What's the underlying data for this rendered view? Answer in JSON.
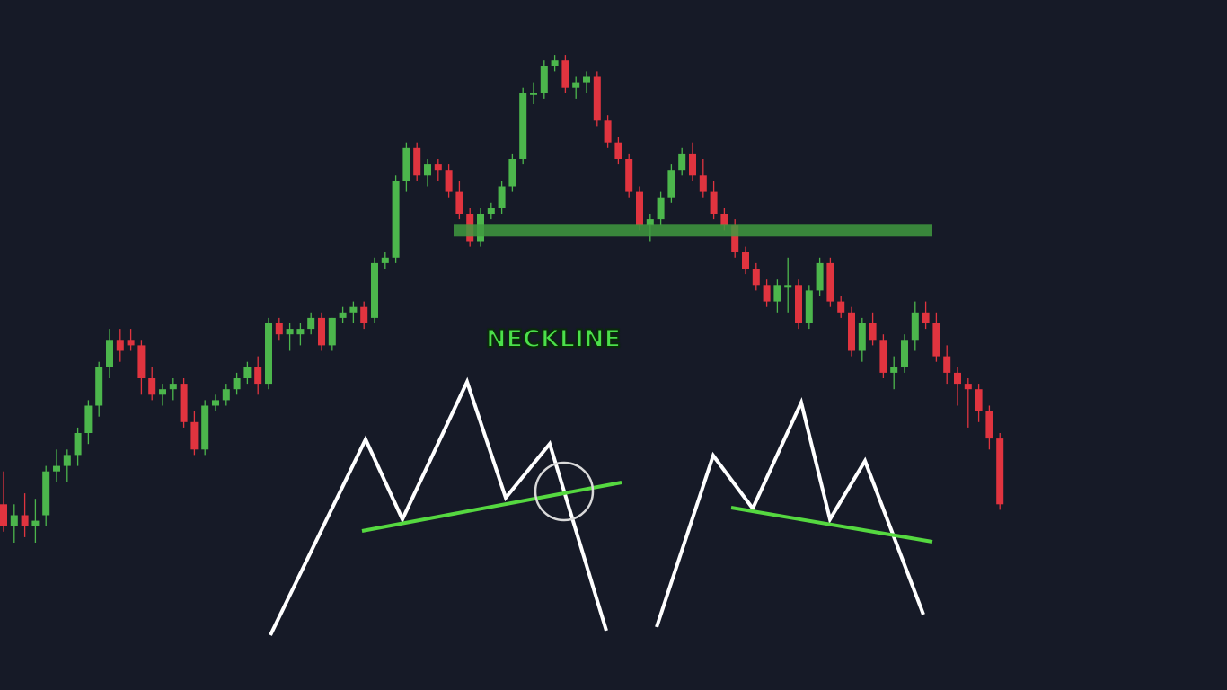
{
  "chart_data": {
    "type": "candlestick",
    "title": "",
    "xlabel": "",
    "ylabel": "",
    "grid": false,
    "colors": {
      "background": "#161a27",
      "up": "#4cb64c",
      "down": "#e0343f",
      "neckline": "#3f9a3f",
      "diagram_line": "#ffffff",
      "diagram_trend": "#55d840"
    },
    "ylim": [
      0,
      100
    ],
    "candles": [
      {
        "o": 17,
        "h": 23,
        "l": 12,
        "c": 13
      },
      {
        "o": 13,
        "h": 17,
        "l": 10,
        "c": 15
      },
      {
        "o": 15,
        "h": 19,
        "l": 11,
        "c": 13
      },
      {
        "o": 13,
        "h": 18,
        "l": 10,
        "c": 14
      },
      {
        "o": 15,
        "h": 24,
        "l": 13,
        "c": 23
      },
      {
        "o": 23,
        "h": 27,
        "l": 21,
        "c": 24
      },
      {
        "o": 24,
        "h": 27,
        "l": 21,
        "c": 26
      },
      {
        "o": 26,
        "h": 31,
        "l": 24,
        "c": 30
      },
      {
        "o": 30,
        "h": 36,
        "l": 28,
        "c": 35
      },
      {
        "o": 35,
        "h": 43,
        "l": 33,
        "c": 42
      },
      {
        "o": 42,
        "h": 49,
        "l": 40,
        "c": 47
      },
      {
        "o": 47,
        "h": 49,
        "l": 43,
        "c": 45
      },
      {
        "o": 47,
        "h": 49,
        "l": 45,
        "c": 46
      },
      {
        "o": 46,
        "h": 47,
        "l": 37,
        "c": 40
      },
      {
        "o": 40,
        "h": 42,
        "l": 36,
        "c": 37
      },
      {
        "o": 37,
        "h": 39,
        "l": 35,
        "c": 38
      },
      {
        "o": 38,
        "h": 40,
        "l": 36,
        "c": 39
      },
      {
        "o": 39,
        "h": 40,
        "l": 31,
        "c": 32
      },
      {
        "o": 32,
        "h": 34,
        "l": 26,
        "c": 27
      },
      {
        "o": 27,
        "h": 36,
        "l": 26,
        "c": 35
      },
      {
        "o": 35,
        "h": 37,
        "l": 34,
        "c": 36
      },
      {
        "o": 36,
        "h": 39,
        "l": 35,
        "c": 38
      },
      {
        "o": 38,
        "h": 41,
        "l": 37,
        "c": 40
      },
      {
        "o": 40,
        "h": 43,
        "l": 39,
        "c": 42
      },
      {
        "o": 42,
        "h": 44,
        "l": 37,
        "c": 39
      },
      {
        "o": 39,
        "h": 51,
        "l": 38,
        "c": 50
      },
      {
        "o": 50,
        "h": 51,
        "l": 47,
        "c": 48
      },
      {
        "o": 48,
        "h": 50,
        "l": 45,
        "c": 49
      },
      {
        "o": 48,
        "h": 50,
        "l": 46,
        "c": 49
      },
      {
        "o": 49,
        "h": 52,
        "l": 48,
        "c": 51
      },
      {
        "o": 51,
        "h": 52,
        "l": 45,
        "c": 46
      },
      {
        "o": 46,
        "h": 51,
        "l": 45,
        "c": 51
      },
      {
        "o": 51,
        "h": 53,
        "l": 50,
        "c": 52
      },
      {
        "o": 52,
        "h": 54,
        "l": 50,
        "c": 53
      },
      {
        "o": 53,
        "h": 54,
        "l": 49,
        "c": 50
      },
      {
        "o": 51,
        "h": 62,
        "l": 50,
        "c": 61
      },
      {
        "o": 61,
        "h": 63,
        "l": 60,
        "c": 62
      },
      {
        "o": 62,
        "h": 77,
        "l": 61,
        "c": 76
      },
      {
        "o": 76,
        "h": 83,
        "l": 74,
        "c": 82
      },
      {
        "o": 82,
        "h": 83,
        "l": 76,
        "c": 77
      },
      {
        "o": 77,
        "h": 80,
        "l": 75,
        "c": 79
      },
      {
        "o": 79,
        "h": 80,
        "l": 76,
        "c": 78
      },
      {
        "o": 78,
        "h": 79,
        "l": 73,
        "c": 74
      },
      {
        "o": 74,
        "h": 76,
        "l": 69,
        "c": 70
      },
      {
        "o": 70,
        "h": 71,
        "l": 64,
        "c": 65
      },
      {
        "o": 65,
        "h": 71,
        "l": 64,
        "c": 70
      },
      {
        "o": 70,
        "h": 72,
        "l": 69,
        "c": 71
      },
      {
        "o": 71,
        "h": 76,
        "l": 70,
        "c": 75
      },
      {
        "o": 75,
        "h": 81,
        "l": 74,
        "c": 80
      },
      {
        "o": 80,
        "h": 93,
        "l": 79,
        "c": 92
      },
      {
        "o": 92,
        "h": 94,
        "l": 90,
        "c": 92
      },
      {
        "o": 92,
        "h": 98,
        "l": 91,
        "c": 97
      },
      {
        "o": 97,
        "h": 99,
        "l": 96,
        "c": 98
      },
      {
        "o": 98,
        "h": 99,
        "l": 92,
        "c": 93
      },
      {
        "o": 93,
        "h": 95,
        "l": 91,
        "c": 94
      },
      {
        "o": 94,
        "h": 96,
        "l": 92,
        "c": 95
      },
      {
        "o": 95,
        "h": 96,
        "l": 86,
        "c": 87
      },
      {
        "o": 87,
        "h": 88,
        "l": 82,
        "c": 83
      },
      {
        "o": 83,
        "h": 84,
        "l": 79,
        "c": 80
      },
      {
        "o": 80,
        "h": 81,
        "l": 73,
        "c": 74
      },
      {
        "o": 74,
        "h": 75,
        "l": 67,
        "c": 68
      },
      {
        "o": 68,
        "h": 70,
        "l": 65,
        "c": 69
      },
      {
        "o": 69,
        "h": 74,
        "l": 68,
        "c": 73
      },
      {
        "o": 73,
        "h": 79,
        "l": 72,
        "c": 78
      },
      {
        "o": 78,
        "h": 82,
        "l": 77,
        "c": 81
      },
      {
        "o": 81,
        "h": 83,
        "l": 76,
        "c": 77
      },
      {
        "o": 77,
        "h": 80,
        "l": 73,
        "c": 74
      },
      {
        "o": 74,
        "h": 76,
        "l": 69,
        "c": 70
      },
      {
        "o": 70,
        "h": 71,
        "l": 67,
        "c": 68
      },
      {
        "o": 68,
        "h": 69,
        "l": 62,
        "c": 63
      },
      {
        "o": 63,
        "h": 64,
        "l": 59,
        "c": 60
      },
      {
        "o": 60,
        "h": 61,
        "l": 56,
        "c": 57
      },
      {
        "o": 57,
        "h": 58,
        "l": 53,
        "c": 54
      },
      {
        "o": 54,
        "h": 58,
        "l": 52,
        "c": 57
      },
      {
        "o": 57,
        "h": 62,
        "l": 52,
        "c": 57
      },
      {
        "o": 57,
        "h": 58,
        "l": 49,
        "c": 50
      },
      {
        "o": 50,
        "h": 57,
        "l": 49,
        "c": 56
      },
      {
        "o": 56,
        "h": 62,
        "l": 55,
        "c": 61
      },
      {
        "o": 61,
        "h": 62,
        "l": 53,
        "c": 54
      },
      {
        "o": 54,
        "h": 55,
        "l": 51,
        "c": 52
      },
      {
        "o": 52,
        "h": 53,
        "l": 44,
        "c": 45
      },
      {
        "o": 45,
        "h": 51,
        "l": 43,
        "c": 50
      },
      {
        "o": 50,
        "h": 52,
        "l": 46,
        "c": 47
      },
      {
        "o": 47,
        "h": 48,
        "l": 40,
        "c": 41
      },
      {
        "o": 41,
        "h": 44,
        "l": 38,
        "c": 42
      },
      {
        "o": 42,
        "h": 48,
        "l": 41,
        "c": 47
      },
      {
        "o": 47,
        "h": 54,
        "l": 45,
        "c": 52
      },
      {
        "o": 52,
        "h": 54,
        "l": 49,
        "c": 50
      },
      {
        "o": 50,
        "h": 52,
        "l": 43,
        "c": 44
      },
      {
        "o": 44,
        "h": 46,
        "l": 39,
        "c": 41
      },
      {
        "o": 41,
        "h": 42,
        "l": 35,
        "c": 39
      },
      {
        "o": 39,
        "h": 40,
        "l": 31,
        "c": 38
      },
      {
        "o": 38,
        "h": 39,
        "l": 32,
        "c": 34
      },
      {
        "o": 34,
        "h": 35,
        "l": 27,
        "c": 29
      },
      {
        "o": 29,
        "h": 30,
        "l": 16,
        "c": 17
      }
    ],
    "neckline": 67,
    "annotations": [
      {
        "text": "NECKLINE"
      }
    ]
  }
}
